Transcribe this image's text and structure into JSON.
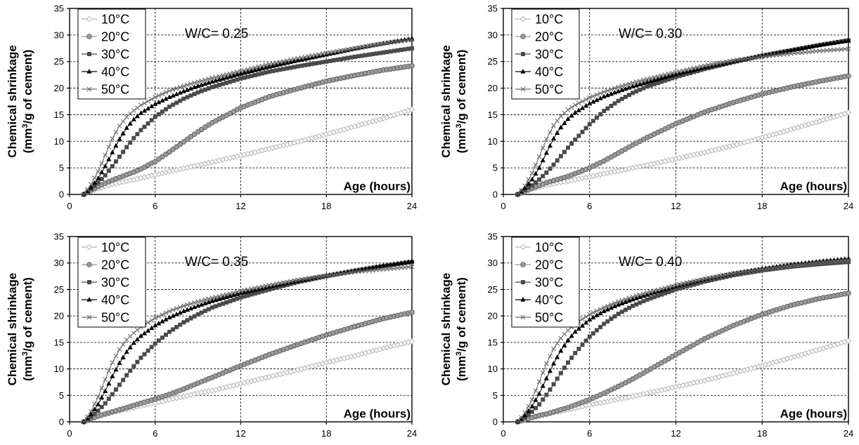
{
  "ylabel_line1": "Chemical shrinkage",
  "ylabel_line2_prefix": "(mm",
  "ylabel_line2_sup": "3",
  "ylabel_line2_suffix": "/g of cement)",
  "xlabel": "Age (hours)",
  "colors": {
    "10": "#b4b4b4",
    "20": "#9a9a9a",
    "30": "#4a4a4a",
    "40": "#000000",
    "50": "#6a6a6a",
    "grid": "#000000"
  },
  "chart_data": [
    {
      "type": "line",
      "annotation": "W/C= 0.25",
      "xlim": [
        0,
        24
      ],
      "ylim": [
        0,
        35
      ],
      "xticks": [
        0,
        6,
        12,
        18,
        24
      ],
      "yticks": [
        0,
        5,
        10,
        15,
        20,
        25,
        30,
        35
      ],
      "grid": true,
      "legend": "top-left",
      "x": [
        1,
        1.5,
        2,
        2.5,
        3,
        3.5,
        4,
        4.5,
        5,
        6,
        7,
        8,
        9,
        10,
        12,
        14,
        16,
        18,
        20,
        22,
        24
      ],
      "series": [
        {
          "name": "10°C",
          "values": [
            0,
            0.6,
            1.1,
            1.5,
            1.9,
            2.2,
            2.5,
            2.8,
            3.1,
            3.7,
            4.3,
            4.9,
            5.5,
            6.1,
            7.3,
            8.6,
            9.9,
            11.3,
            12.8,
            14.3,
            16
          ]
        },
        {
          "name": "20°C",
          "values": [
            0,
            0.8,
            1.5,
            2.1,
            2.7,
            3.2,
            3.7,
            4.2,
            4.8,
            6.2,
            8,
            9.9,
            11.8,
            13.5,
            16.3,
            18.4,
            19.9,
            21.3,
            22.4,
            23.4,
            24.2
          ]
        },
        {
          "name": "30°C",
          "values": [
            0,
            1,
            2.2,
            3.6,
            5.3,
            7.1,
            8.9,
            10.6,
            12.1,
            14.6,
            16.5,
            18,
            19.2,
            20.2,
            21.8,
            23.1,
            24.1,
            25,
            25.9,
            26.7,
            27.5
          ]
        },
        {
          "name": "40°C",
          "values": [
            0,
            1.3,
            3,
            5.3,
            7.9,
            10.4,
            12.5,
            14.1,
            15.3,
            17,
            18.3,
            19.4,
            20.4,
            21.2,
            22.7,
            24,
            25.2,
            26.3,
            27.4,
            28.4,
            29.3
          ]
        },
        {
          "name": "50°C",
          "values": [
            0,
            1.9,
            4.3,
            7.4,
            10.5,
            12.9,
            14.6,
            15.8,
            16.8,
            18.3,
            19.5,
            20.4,
            21.2,
            21.9,
            23.2,
            24.5,
            25.6,
            26.6,
            27.5,
            28.4,
            29.1
          ]
        }
      ]
    },
    {
      "type": "line",
      "annotation": "W/C= 0.30",
      "xlim": [
        0,
        24
      ],
      "ylim": [
        0,
        35
      ],
      "xticks": [
        0,
        6,
        12,
        18,
        24
      ],
      "yticks": [
        0,
        5,
        10,
        15,
        20,
        25,
        30,
        35
      ],
      "grid": true,
      "legend": "top-left",
      "x": [
        1,
        1.5,
        2,
        2.5,
        3,
        3.5,
        4,
        4.5,
        5,
        6,
        7,
        8,
        9,
        10,
        12,
        14,
        16,
        18,
        20,
        22,
        24
      ],
      "series": [
        {
          "name": "10°C",
          "values": [
            0,
            0.5,
            1,
            1.4,
            1.7,
            2,
            2.3,
            2.5,
            2.8,
            3.3,
            3.9,
            4.4,
            5,
            5.5,
            6.7,
            7.9,
            9.2,
            10.7,
            12.2,
            13.8,
            15.4
          ]
        },
        {
          "name": "20°C",
          "values": [
            0,
            0.6,
            1.2,
            1.7,
            2.2,
            2.6,
            3,
            3.4,
            3.9,
            5,
            6.3,
            7.8,
            9.3,
            10.7,
            13.3,
            15.5,
            17.3,
            18.9,
            20.2,
            21.3,
            22.3
          ]
        },
        {
          "name": "30°C",
          "values": [
            0,
            0.8,
            1.7,
            2.8,
            4.1,
            5.6,
            7.2,
            8.8,
            10.3,
            13.2,
            15.7,
            17.6,
            19.1,
            20.3,
            22.1,
            23.6,
            24.9,
            26.1,
            27.1,
            28.1,
            29
          ]
        },
        {
          "name": "40°C",
          "values": [
            0,
            1.2,
            2.8,
            5,
            7.8,
            10.5,
            12.6,
            14.2,
            15.4,
            17.1,
            18.4,
            19.4,
            20.3,
            21.1,
            22.6,
            23.9,
            25,
            26.1,
            27.1,
            28.1,
            28.9
          ]
        },
        {
          "name": "50°C",
          "values": [
            0,
            1.6,
            4,
            7.1,
            10.4,
            13,
            14.7,
            15.9,
            16.8,
            18.2,
            19.3,
            20.2,
            21,
            21.7,
            23,
            24.2,
            25.2,
            25.9,
            26.5,
            27,
            27.4
          ]
        }
      ]
    },
    {
      "type": "line",
      "annotation": "W/C= 0.35",
      "xlim": [
        0,
        24
      ],
      "ylim": [
        0,
        35
      ],
      "xticks": [
        0,
        6,
        12,
        18,
        24
      ],
      "yticks": [
        0,
        5,
        10,
        15,
        20,
        25,
        30,
        35
      ],
      "grid": true,
      "legend": "top-left",
      "x": [
        1,
        1.5,
        2,
        2.5,
        3,
        3.5,
        4,
        4.5,
        5,
        6,
        7,
        8,
        9,
        10,
        12,
        14,
        16,
        18,
        20,
        22,
        24
      ],
      "series": [
        {
          "name": "10°C",
          "values": [
            0,
            0.5,
            1,
            1.4,
            1.8,
            2.1,
            2.4,
            2.7,
            3,
            3.6,
            4.2,
            4.8,
            5.4,
            5.9,
            7.2,
            8.5,
            9.8,
            11.2,
            12.5,
            13.9,
            15.2
          ]
        },
        {
          "name": "20°C",
          "values": [
            0,
            0.6,
            1.1,
            1.5,
            1.9,
            2.3,
            2.7,
            3.1,
            3.5,
            4.3,
            5.2,
            6.2,
            7.3,
            8.4,
            10.6,
            12.7,
            14.6,
            16.4,
            18,
            19.5,
            20.7
          ]
        },
        {
          "name": "30°C",
          "values": [
            0,
            0.9,
            2.1,
            3.5,
            5.2,
            7,
            8.8,
            10.5,
            12.1,
            14.8,
            17,
            18.8,
            20.3,
            21.6,
            23.5,
            25,
            26.4,
            27.5,
            28.5,
            29.4,
            30.2
          ]
        },
        {
          "name": "40°C",
          "values": [
            0,
            1.4,
            3.3,
            5.8,
            8.6,
            11.1,
            13.2,
            14.9,
            16.2,
            18.2,
            19.7,
            20.9,
            21.9,
            22.8,
            24.3,
            25.5,
            26.6,
            27.6,
            28.6,
            29.5,
            30.3
          ]
        },
        {
          "name": "50°C",
          "values": [
            0,
            2,
            4.7,
            8,
            11.2,
            13.7,
            15.5,
            16.8,
            17.9,
            19.6,
            20.9,
            21.9,
            22.7,
            23.4,
            24.7,
            25.8,
            26.8,
            27.6,
            28.3,
            28.8,
            29.3
          ]
        }
      ]
    },
    {
      "type": "line",
      "annotation": "W/C= 0.40",
      "xlim": [
        0,
        24
      ],
      "ylim": [
        0,
        35
      ],
      "xticks": [
        0,
        6,
        12,
        18,
        24
      ],
      "yticks": [
        0,
        5,
        10,
        15,
        20,
        25,
        30,
        35
      ],
      "grid": true,
      "legend": "top-left",
      "x": [
        1,
        1.5,
        2,
        2.5,
        3,
        3.5,
        4,
        4.5,
        5,
        6,
        7,
        8,
        9,
        10,
        12,
        14,
        16,
        18,
        20,
        22,
        24
      ],
      "series": [
        {
          "name": "10°C",
          "values": [
            0,
            0.4,
            0.8,
            1.1,
            1.4,
            1.7,
            2,
            2.3,
            2.6,
            3.2,
            3.7,
            4.3,
            4.8,
            5.4,
            6.6,
            7.8,
            9.2,
            10.6,
            12.1,
            13.7,
            15.3
          ]
        },
        {
          "name": "20°C",
          "values": [
            0,
            0.4,
            0.8,
            1.2,
            1.5,
            1.9,
            2.3,
            2.7,
            3.2,
            4.2,
            5.4,
            6.7,
            8.1,
            9.6,
            12.7,
            15.7,
            18.2,
            20.3,
            22,
            23.3,
            24.3
          ]
        },
        {
          "name": "30°C",
          "values": [
            0,
            0.8,
            1.9,
            3.3,
            5.1,
            7.1,
            9.2,
            11.2,
            13,
            16.1,
            18.5,
            20.4,
            21.9,
            23.1,
            25,
            26.5,
            27.7,
            28.6,
            29.3,
            29.8,
            30.2
          ]
        },
        {
          "name": "40°C",
          "values": [
            0,
            1.2,
            2.9,
            5.3,
            8.2,
            11,
            13.4,
            15.4,
            17,
            19.3,
            20.9,
            22.1,
            23.1,
            24,
            25.6,
            26.9,
            28,
            28.9,
            29.7,
            30.3,
            30.8
          ]
        },
        {
          "name": "50°C",
          "values": [
            0,
            1.7,
            4.2,
            7.6,
            11,
            13.8,
            15.8,
            17.3,
            18.5,
            20.3,
            21.6,
            22.7,
            23.6,
            24.4,
            25.8,
            27,
            28,
            28.8,
            29.5,
            30.1,
            30.6
          ]
        }
      ]
    }
  ]
}
